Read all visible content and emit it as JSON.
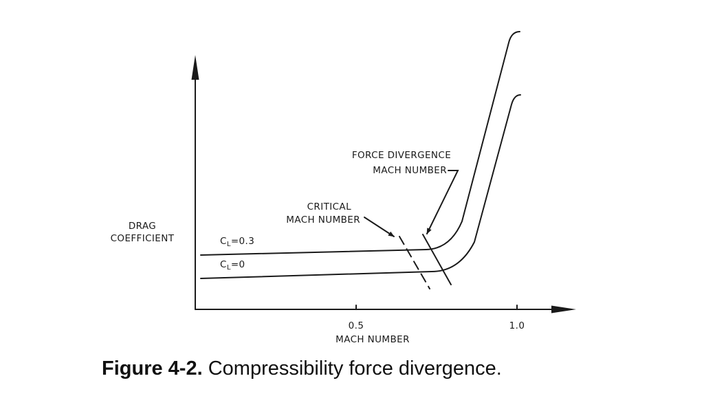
{
  "diagram": {
    "y_axis_label_line1": "DRAG",
    "y_axis_label_line2": "COEFFICIENT",
    "x_axis_label": "MACH NUMBER",
    "x_tick_05": "0.5",
    "x_tick_10": "1.0",
    "curve_upper_label": "C",
    "curve_upper_sub": "L",
    "curve_upper_value": "=0.3",
    "curve_lower_label": "C",
    "curve_lower_sub": "L",
    "curve_lower_value": "=0",
    "critical_line1": "CRITICAL",
    "critical_line2": "MACH NUMBER",
    "force_line1": "FORCE DIVERGENCE",
    "force_line2": "MACH NUMBER"
  },
  "caption": {
    "figure_number": "Figure 4-2.",
    "text": "Compressibility force divergence."
  }
}
